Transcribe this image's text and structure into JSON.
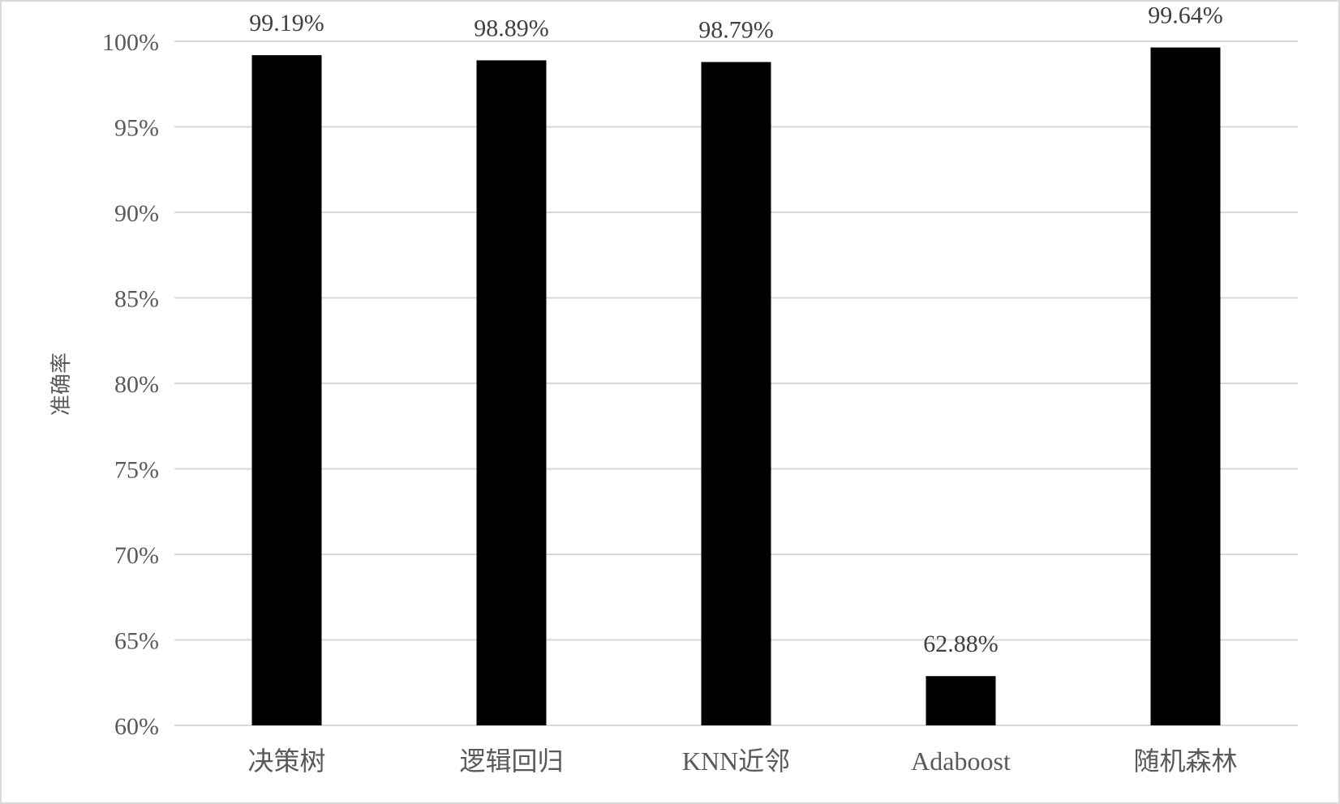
{
  "chart_data": {
    "type": "bar",
    "categories": [
      "决策树",
      "逻辑回归",
      "KNN近邻",
      "Adaboost",
      "随机森林"
    ],
    "values": [
      99.19,
      98.89,
      98.79,
      62.88,
      99.64
    ],
    "data_labels": [
      "99.19%",
      "98.89%",
      "98.79%",
      "62.88%",
      "99.64%"
    ],
    "ylabel": "准确率",
    "xlabel": "",
    "ylim": [
      60,
      100
    ],
    "yticks": [
      60,
      65,
      70,
      75,
      80,
      85,
      90,
      95,
      100
    ],
    "ytick_labels": [
      "60%",
      "65%",
      "70%",
      "75%",
      "80%",
      "85%",
      "90%",
      "95%",
      "100%"
    ],
    "grid": true,
    "legend": "none",
    "colors": {
      "bar": "#000000",
      "grid": "#d9d9d9",
      "border": "#d9d9d9"
    }
  }
}
